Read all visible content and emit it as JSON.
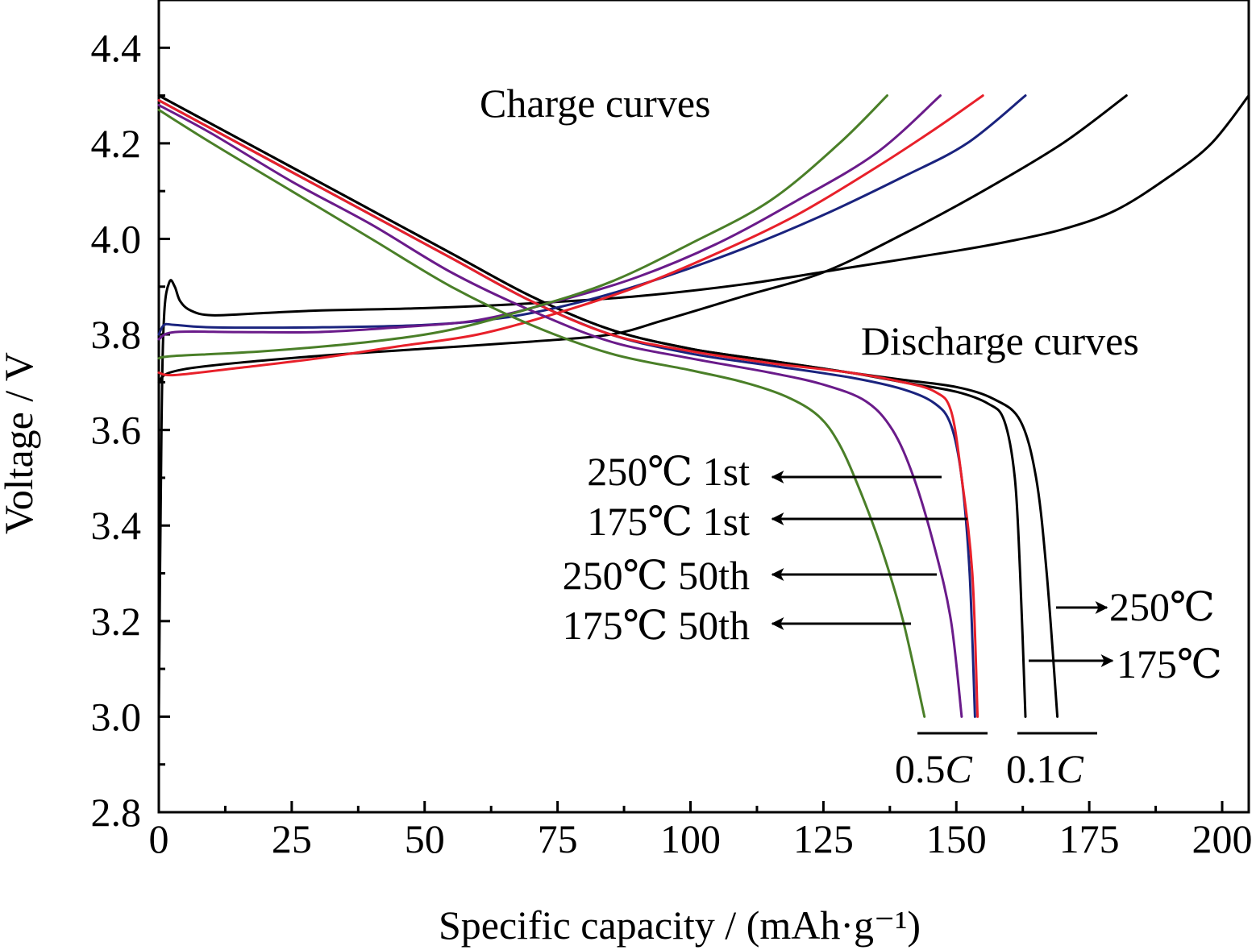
{
  "chart_data": {
    "type": "line",
    "xlabel": "Specific capacity / (mAh·g⁻¹)",
    "ylabel": "Voltage / V",
    "xlim": [
      0,
      205
    ],
    "ylim": [
      2.8,
      4.5
    ],
    "x_ticks": [
      0,
      25,
      50,
      75,
      100,
      125,
      150,
      175,
      200
    ],
    "y_ticks": [
      2.8,
      3.0,
      3.2,
      3.4,
      3.6,
      3.8,
      4.0,
      4.2,
      4.4
    ],
    "x_tick_labels": [
      "0",
      "25",
      "50",
      "75",
      "100",
      "125",
      "150",
      "175",
      "200"
    ],
    "y_tick_labels": [
      "2.8",
      "3.0",
      "3.2",
      "3.4",
      "3.6",
      "3.8",
      "4.0",
      "4.2",
      "4.4"
    ],
    "grid": false,
    "annotations": {
      "charge": "Charge curves",
      "discharge": "Discharge curves",
      "label_250_1st": "250℃ 1st",
      "label_175_1st": "175℃ 1st",
      "label_250_50th": "250℃ 50th",
      "label_175_50th": "175℃ 50th",
      "label_250": "250℃",
      "label_175": "175℃",
      "rate_05": "0.5",
      "rate_01": "0.1",
      "rate_unit": "C"
    },
    "series": [
      {
        "color": "#000000",
        "charge": [
          [
            0,
            3.0
          ],
          [
            0.5,
            3.6
          ],
          [
            1,
            3.84
          ],
          [
            2,
            3.91
          ],
          [
            3,
            3.9
          ],
          [
            4,
            3.87
          ],
          [
            6,
            3.85
          ],
          [
            10,
            3.84
          ],
          [
            20,
            3.845
          ],
          [
            30,
            3.85
          ],
          [
            50,
            3.855
          ],
          [
            70,
            3.865
          ],
          [
            90,
            3.88
          ],
          [
            110,
            3.905
          ],
          [
            130,
            3.94
          ],
          [
            150,
            3.975
          ],
          [
            160,
            3.995
          ],
          [
            170,
            4.02
          ],
          [
            180,
            4.06
          ],
          [
            190,
            4.13
          ],
          [
            198,
            4.2
          ],
          [
            205,
            4.3
          ]
        ],
        "discharge": [
          [
            0,
            4.3
          ],
          [
            10,
            4.24
          ],
          [
            25,
            4.15
          ],
          [
            40,
            4.06
          ],
          [
            55,
            3.97
          ],
          [
            70,
            3.88
          ],
          [
            85,
            3.81
          ],
          [
            100,
            3.77
          ],
          [
            115,
            3.745
          ],
          [
            130,
            3.72
          ],
          [
            140,
            3.7
          ],
          [
            150,
            3.68
          ],
          [
            156,
            3.655
          ],
          [
            159,
            3.62
          ],
          [
            161,
            3.5
          ],
          [
            162,
            3.3
          ],
          [
            163,
            3.0
          ]
        ]
      },
      {
        "color": "#000000",
        "charge": [
          [
            0,
            3.7
          ],
          [
            2,
            3.72
          ],
          [
            10,
            3.735
          ],
          [
            30,
            3.755
          ],
          [
            50,
            3.77
          ],
          [
            70,
            3.785
          ],
          [
            85,
            3.8
          ],
          [
            95,
            3.83
          ],
          [
            110,
            3.88
          ],
          [
            125,
            3.93
          ],
          [
            140,
            4.01
          ],
          [
            155,
            4.1
          ],
          [
            170,
            4.2
          ],
          [
            182,
            4.3
          ]
        ],
        "discharge": [
          [
            0,
            4.3
          ],
          [
            10,
            4.24
          ],
          [
            25,
            4.15
          ],
          [
            40,
            4.06
          ],
          [
            55,
            3.97
          ],
          [
            70,
            3.88
          ],
          [
            85,
            3.81
          ],
          [
            100,
            3.77
          ],
          [
            115,
            3.745
          ],
          [
            130,
            3.72
          ],
          [
            140,
            3.705
          ],
          [
            150,
            3.69
          ],
          [
            157,
            3.665
          ],
          [
            162,
            3.62
          ],
          [
            165,
            3.5
          ],
          [
            167,
            3.3
          ],
          [
            169,
            3.0
          ]
        ]
      },
      {
        "color": "#1a237e",
        "charge": [
          [
            0,
            3.8
          ],
          [
            1,
            3.82
          ],
          [
            3,
            3.82
          ],
          [
            10,
            3.815
          ],
          [
            30,
            3.815
          ],
          [
            50,
            3.82
          ],
          [
            65,
            3.835
          ],
          [
            80,
            3.87
          ],
          [
            95,
            3.92
          ],
          [
            110,
            3.98
          ],
          [
            125,
            4.05
          ],
          [
            140,
            4.13
          ],
          [
            152,
            4.2
          ],
          [
            163,
            4.3
          ]
        ],
        "discharge": [
          [
            0,
            4.29
          ],
          [
            10,
            4.23
          ],
          [
            25,
            4.14
          ],
          [
            40,
            4.05
          ],
          [
            55,
            3.96
          ],
          [
            70,
            3.87
          ],
          [
            85,
            3.8
          ],
          [
            100,
            3.76
          ],
          [
            115,
            3.735
          ],
          [
            130,
            3.71
          ],
          [
            140,
            3.685
          ],
          [
            146,
            3.655
          ],
          [
            149,
            3.61
          ],
          [
            151,
            3.5
          ],
          [
            152.5,
            3.3
          ],
          [
            153.5,
            3.0
          ]
        ]
      },
      {
        "color": "#e8202a",
        "charge": [
          [
            0,
            3.72
          ],
          [
            3,
            3.715
          ],
          [
            15,
            3.73
          ],
          [
            30,
            3.75
          ],
          [
            45,
            3.775
          ],
          [
            60,
            3.8
          ],
          [
            75,
            3.845
          ],
          [
            90,
            3.9
          ],
          [
            105,
            3.97
          ],
          [
            120,
            4.05
          ],
          [
            135,
            4.15
          ],
          [
            146,
            4.23
          ],
          [
            155,
            4.3
          ]
        ],
        "discharge": [
          [
            0,
            4.29
          ],
          [
            10,
            4.23
          ],
          [
            25,
            4.14
          ],
          [
            40,
            4.05
          ],
          [
            55,
            3.96
          ],
          [
            70,
            3.87
          ],
          [
            85,
            3.8
          ],
          [
            100,
            3.765
          ],
          [
            115,
            3.74
          ],
          [
            130,
            3.72
          ],
          [
            140,
            3.7
          ],
          [
            146,
            3.68
          ],
          [
            149,
            3.64
          ],
          [
            151,
            3.5
          ],
          [
            153,
            3.3
          ],
          [
            154,
            3.0
          ]
        ]
      },
      {
        "color": "#6a1b8a",
        "charge": [
          [
            0,
            3.79
          ],
          [
            3,
            3.805
          ],
          [
            15,
            3.805
          ],
          [
            30,
            3.805
          ],
          [
            45,
            3.815
          ],
          [
            60,
            3.83
          ],
          [
            75,
            3.87
          ],
          [
            90,
            3.92
          ],
          [
            105,
            3.99
          ],
          [
            120,
            4.08
          ],
          [
            135,
            4.18
          ],
          [
            147,
            4.3
          ]
        ],
        "discharge": [
          [
            0,
            4.28
          ],
          [
            10,
            4.22
          ],
          [
            25,
            4.12
          ],
          [
            40,
            4.03
          ],
          [
            55,
            3.93
          ],
          [
            70,
            3.85
          ],
          [
            85,
            3.785
          ],
          [
            100,
            3.75
          ],
          [
            115,
            3.72
          ],
          [
            125,
            3.695
          ],
          [
            133,
            3.66
          ],
          [
            138,
            3.6
          ],
          [
            142,
            3.5
          ],
          [
            146,
            3.35
          ],
          [
            149,
            3.2
          ],
          [
            151,
            3.0
          ]
        ]
      },
      {
        "color": "#4a7f28",
        "charge": [
          [
            0,
            3.75
          ],
          [
            3,
            3.755
          ],
          [
            20,
            3.765
          ],
          [
            40,
            3.785
          ],
          [
            55,
            3.81
          ],
          [
            70,
            3.855
          ],
          [
            85,
            3.91
          ],
          [
            100,
            3.99
          ],
          [
            115,
            4.08
          ],
          [
            128,
            4.2
          ],
          [
            137,
            4.3
          ]
        ],
        "discharge": [
          [
            0,
            4.27
          ],
          [
            10,
            4.2
          ],
          [
            25,
            4.1
          ],
          [
            40,
            4.0
          ],
          [
            55,
            3.9
          ],
          [
            70,
            3.82
          ],
          [
            85,
            3.76
          ],
          [
            100,
            3.725
          ],
          [
            110,
            3.7
          ],
          [
            118,
            3.67
          ],
          [
            124,
            3.63
          ],
          [
            128,
            3.57
          ],
          [
            132,
            3.47
          ],
          [
            136,
            3.35
          ],
          [
            140,
            3.2
          ],
          [
            144,
            3.0
          ]
        ]
      }
    ]
  }
}
